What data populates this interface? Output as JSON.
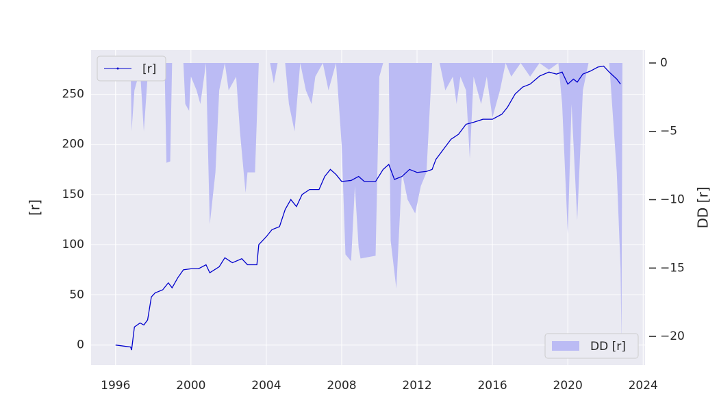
{
  "chart_data": {
    "type": "line",
    "xlim": [
      1994.7,
      2024.1
    ],
    "xticks": [
      1996,
      2000,
      2004,
      2008,
      2012,
      2016,
      2020,
      2024
    ],
    "ylim": [
      -20,
      294
    ],
    "yticks": [
      0,
      50,
      100,
      150,
      200,
      250
    ],
    "y2lim": [
      -22.1,
      0.95
    ],
    "y2ticks": [
      0,
      {
        "value": -5,
        "label": "−5"
      },
      {
        "value": -10,
        "label": "−10"
      },
      {
        "value": -15,
        "label": "−15"
      },
      {
        "value": -20,
        "label": "−20"
      }
    ],
    "ylabel": "[r]",
    "y2label": "DD [r]",
    "grid": true,
    "series": [
      {
        "name": "[r]",
        "type": "line",
        "color": "#0000cc",
        "legend": "upper left",
        "x": [
          1996.0,
          1996.8,
          1996.85,
          1997.0,
          1997.3,
          1997.5,
          1997.7,
          1997.9,
          1998.1,
          1998.5,
          1998.8,
          1999.0,
          1999.3,
          1999.6,
          2000.0,
          2000.4,
          2000.8,
          2001.0,
          2001.5,
          2001.8,
          2002.2,
          2002.7,
          2003.0,
          2003.5,
          2003.6,
          2004.0,
          2004.3,
          2004.7,
          2005.0,
          2005.3,
          2005.6,
          2005.9,
          2006.3,
          2006.8,
          2007.1,
          2007.4,
          2007.7,
          2008.0,
          2008.5,
          2008.9,
          2009.2,
          2009.8,
          2010.2,
          2010.5,
          2010.8,
          2011.2,
          2011.6,
          2012.0,
          2012.5,
          2012.8,
          2013.0,
          2013.4,
          2013.8,
          2014.2,
          2014.6,
          2015.0,
          2015.5,
          2016.0,
          2016.5,
          2016.8,
          2017.2,
          2017.6,
          2018.0,
          2018.5,
          2019.0,
          2019.4,
          2019.7,
          2020.0,
          2020.3,
          2020.5,
          2020.8,
          2021.2,
          2021.6,
          2021.9,
          2022.2,
          2022.6,
          2022.8
        ],
        "values": [
          0,
          -2,
          -5,
          18,
          22,
          20,
          25,
          48,
          52,
          55,
          62,
          57,
          67,
          75,
          76,
          76,
          80,
          72,
          78,
          87,
          82,
          86,
          80,
          80,
          100,
          108,
          115,
          118,
          135,
          145,
          138,
          150,
          155,
          155,
          168,
          175,
          170,
          163,
          164,
          168,
          163,
          163,
          175,
          180,
          165,
          168,
          175,
          172,
          173,
          175,
          185,
          195,
          205,
          210,
          220,
          222,
          225,
          225,
          230,
          237,
          250,
          257,
          260,
          268,
          272,
          270,
          272,
          260,
          265,
          262,
          270,
          273,
          277,
          278,
          272,
          265,
          260
        ]
      },
      {
        "name": "DD [r]",
        "type": "area",
        "axis": "y2",
        "color": "#bbbbf4",
        "legend": "lower right",
        "x": [
          1996.8,
          1996.85,
          1997.0,
          1997.3,
          1997.5,
          1997.7,
          1997.9,
          1998.6,
          1998.7,
          1998.9,
          1999.0,
          1999.6,
          1999.7,
          1999.9,
          2000.0,
          2000.3,
          2000.5,
          2000.8,
          2000.9,
          2001.0,
          2001.3,
          2001.5,
          2001.8,
          2002.0,
          2002.4,
          2002.6,
          2002.9,
          2003.0,
          2003.4,
          2003.6,
          2004.2,
          2004.4,
          2004.6,
          2005.0,
          2005.2,
          2005.5,
          2005.8,
          2006.1,
          2006.4,
          2006.6,
          2007.0,
          2007.3,
          2007.5,
          2007.7,
          2008.0,
          2008.2,
          2008.5,
          2008.7,
          2008.9,
          2009.0,
          2009.8,
          2010.0,
          2010.2,
          2010.5,
          2010.6,
          2010.9,
          2011.2,
          2011.5,
          2011.9,
          2012.2,
          2012.5,
          2012.8,
          2013.2,
          2013.5,
          2013.9,
          2014.1,
          2014.3,
          2014.6,
          2014.8,
          2015.0,
          2015.4,
          2015.7,
          2016.0,
          2016.4,
          2016.7,
          2017.0,
          2017.5,
          2018.0,
          2018.5,
          2019.0,
          2019.5,
          2019.7,
          2020.0,
          2020.2,
          2020.5,
          2020.8,
          2021.1,
          2022.2,
          2022.6,
          2022.8,
          2022.85,
          2022.9
        ],
        "values": [
          0,
          -5,
          -2,
          -0.5,
          -5,
          -1,
          0,
          0,
          -7.3,
          -7.2,
          0,
          0,
          -3,
          -3.5,
          -1,
          -2,
          -3,
          0,
          -6,
          -11.8,
          -8,
          -2,
          0,
          -2,
          -1,
          -5,
          -9.5,
          -8,
          -8,
          0,
          0,
          -1.5,
          0,
          0,
          -3,
          -5,
          0,
          -2,
          -3,
          -1,
          0,
          -2,
          -1,
          0,
          -6,
          -14,
          -14.5,
          -9,
          -13.5,
          -14.3,
          -14.1,
          -1,
          0,
          0,
          -13,
          -16.5,
          -8,
          -10,
          -11,
          -9,
          -8,
          0,
          0,
          -2,
          -1,
          -3,
          -1,
          -2,
          -7,
          -1,
          -3,
          -1,
          -4,
          -2,
          0,
          -1,
          0,
          -1,
          0,
          -0.5,
          0,
          -3,
          -12.5,
          -3,
          -11.5,
          -2,
          0,
          0,
          -8,
          -15,
          -20.5,
          0
        ]
      }
    ]
  }
}
